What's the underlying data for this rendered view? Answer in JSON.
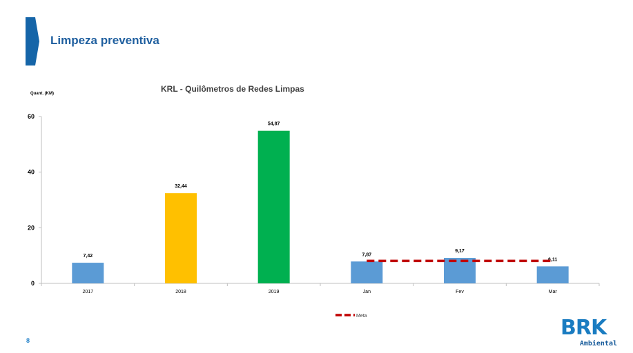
{
  "header": {
    "title": "Limpeza preventiva"
  },
  "footer": {
    "page_number": "8"
  },
  "logo": {
    "text": "BRK",
    "subtitle": "Ambiental",
    "color": "#1a7cc1"
  },
  "chart_data": {
    "type": "bar",
    "title": "KRL - Quilômetros de Redes Limpas",
    "ylabel": "Quant. (KM)",
    "xlabel": "",
    "ylim": [
      0,
      60
    ],
    "yticks": [
      0,
      20,
      40,
      60
    ],
    "categories": [
      "2017",
      "2018",
      "2019",
      "Jan",
      "Fev",
      "Mar"
    ],
    "values": [
      7.42,
      32.44,
      54.87,
      7.87,
      9.17,
      6.11
    ],
    "value_labels": [
      "7,42",
      "32,44",
      "54,87",
      "7,87",
      "9,17",
      "6,11"
    ],
    "bar_colors": [
      "#5b9bd5",
      "#ffc000",
      "#00b050",
      "#5b9bd5",
      "#5b9bd5",
      "#5b9bd5"
    ],
    "target": {
      "name": "Meta",
      "value": 8.1,
      "from_category": "Jan",
      "to_category": "Mar",
      "color": "#c00000",
      "style": "dashed"
    },
    "legend": {
      "position": "bottom",
      "entries": [
        "Meta"
      ]
    },
    "grid": false
  }
}
